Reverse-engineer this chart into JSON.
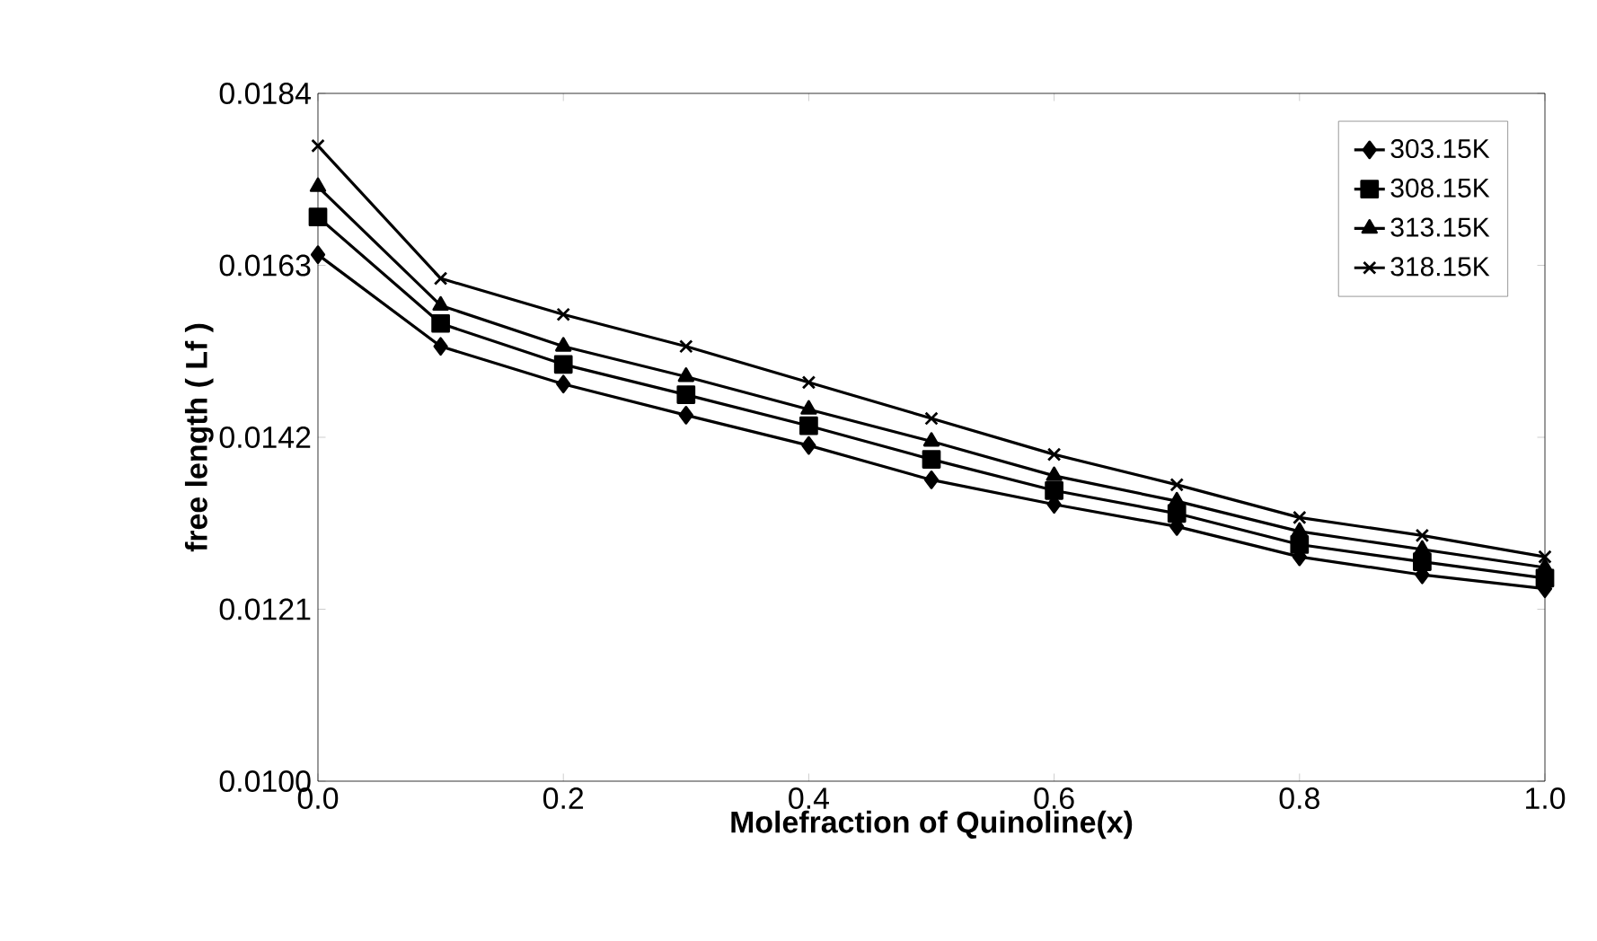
{
  "chart_data": {
    "type": "line",
    "xlabel": "Molefraction of Quinoline(x)",
    "ylabel": "free length ( Lf )",
    "x": [
      0.0,
      0.1,
      0.2,
      0.3,
      0.4,
      0.5,
      0.6,
      0.7,
      0.8,
      0.9,
      1.0
    ],
    "xlim": [
      0.0,
      1.0
    ],
    "xticks": [
      {
        "value": 0.0,
        "label": "0.0"
      },
      {
        "value": 0.2,
        "label": "0.2"
      },
      {
        "value": 0.4,
        "label": "0.4"
      },
      {
        "value": 0.6,
        "label": "0.6"
      },
      {
        "value": 0.8,
        "label": "0.8"
      },
      {
        "value": 1.0,
        "label": "1.0"
      }
    ],
    "ylim": [
      0.01,
      0.0184
    ],
    "yticks": [
      {
        "value": 0.01,
        "label": "0.0100"
      },
      {
        "value": 0.0121,
        "label": "0.0121"
      },
      {
        "value": 0.0142,
        "label": "0.0142"
      },
      {
        "value": 0.0163,
        "label": "0.0163"
      },
      {
        "value": 0.0184,
        "label": "0.0184"
      }
    ],
    "legend": "top right",
    "grid": false,
    "series": [
      {
        "name": "303.15K",
        "color": "#000000",
        "marker": "diamond",
        "values": [
          0.01643,
          0.01531,
          0.01485,
          0.01447,
          0.0141,
          0.01368,
          0.01338,
          0.01311,
          0.01274,
          0.01252,
          0.01235
        ]
      },
      {
        "name": "308.15K",
        "color": "#000000",
        "marker": "square",
        "values": [
          0.01689,
          0.01559,
          0.01509,
          0.01472,
          0.01434,
          0.01393,
          0.01355,
          0.01327,
          0.01289,
          0.01268,
          0.01248
        ]
      },
      {
        "name": "313.15K",
        "color": "#000000",
        "marker": "triangle",
        "values": [
          0.01726,
          0.01581,
          0.01531,
          0.01494,
          0.01454,
          0.01415,
          0.01373,
          0.01342,
          0.01305,
          0.01283,
          0.01261
        ]
      },
      {
        "name": "318.15K",
        "color": "#000000",
        "marker": "cross",
        "values": [
          0.01776,
          0.01614,
          0.0157,
          0.01531,
          0.01487,
          0.01443,
          0.01399,
          0.01362,
          0.01322,
          0.013,
          0.01274
        ]
      }
    ]
  }
}
